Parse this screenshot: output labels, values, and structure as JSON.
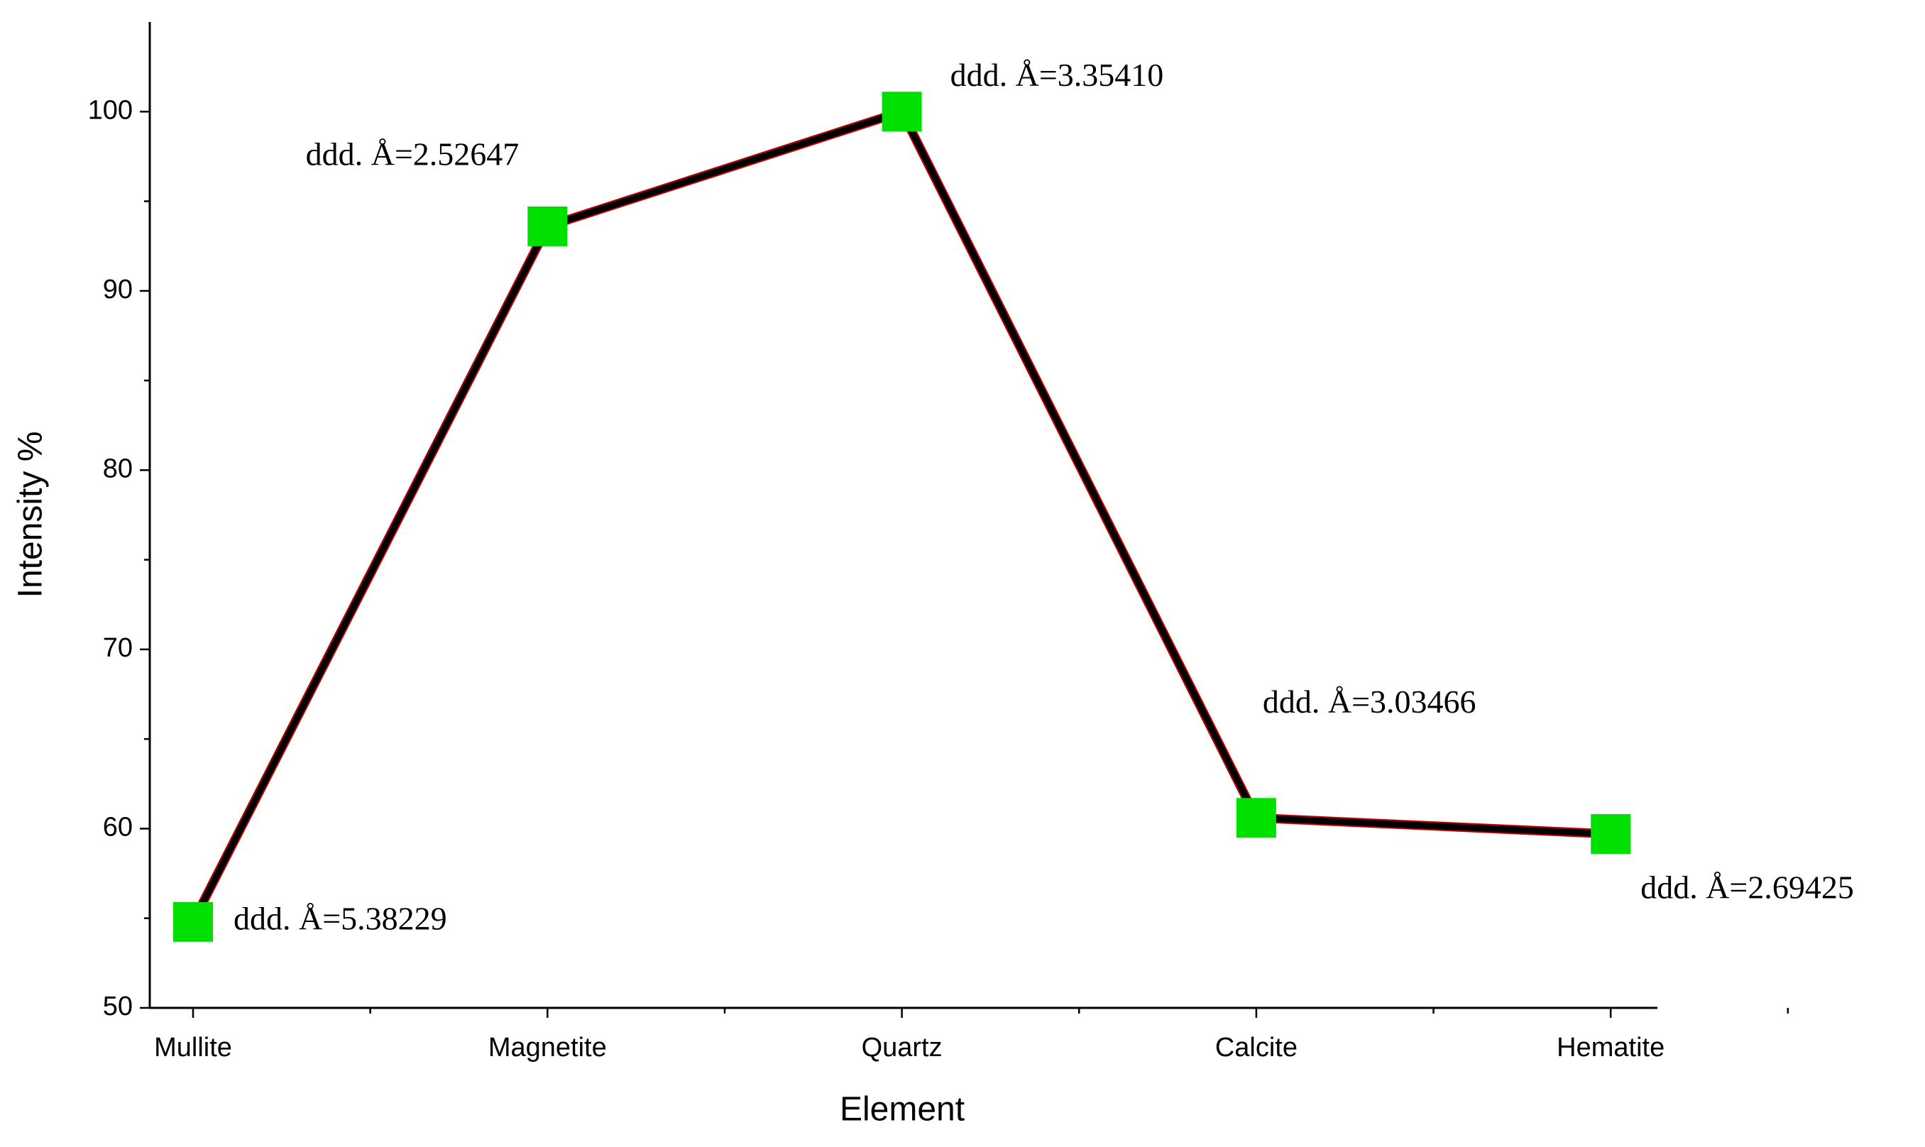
{
  "chart_data": {
    "type": "line",
    "categories": [
      "Mullite",
      "Magnetite",
      "Quartz",
      "Calcite",
      "Hematite"
    ],
    "series": [
      {
        "name": "Intensity",
        "color": "#000000",
        "values": [
          54.8,
          93.6,
          100,
          60.6,
          59.7
        ]
      }
    ],
    "annotations": [
      "ddd. Å=5.38229",
      "ddd. Å=2.52647",
      "ddd. Å=3.35410",
      "ddd. Å=3.03466",
      "ddd. Å=2.69425"
    ],
    "marker_color": "#00e000",
    "xlabel": "Element",
    "ylabel": "Intensity %",
    "ylim": [
      50,
      105
    ],
    "yticks": [
      50,
      60,
      70,
      80,
      90,
      100
    ]
  }
}
